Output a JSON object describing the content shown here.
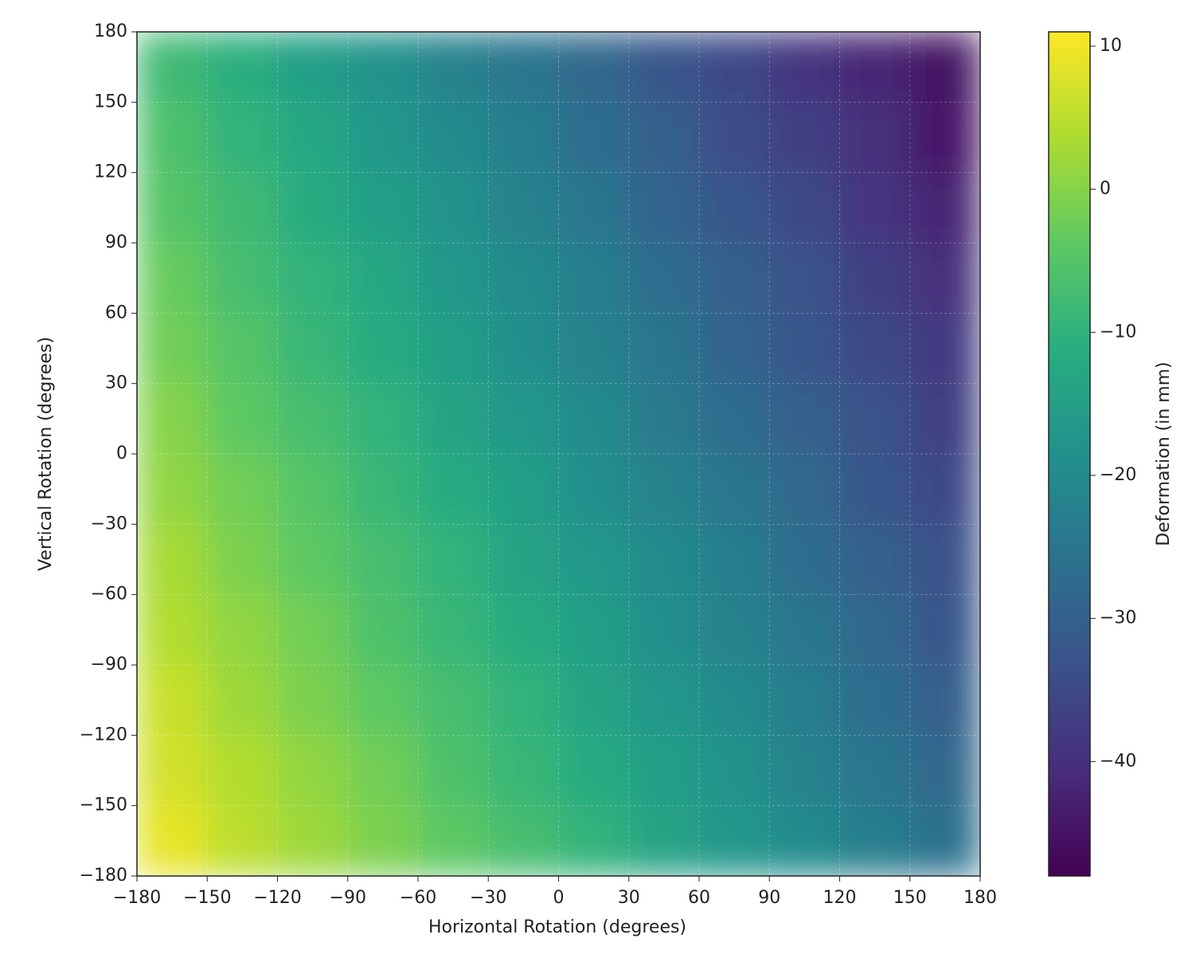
{
  "chart_data": {
    "type": "heatmap",
    "xlabel": "Horizontal Rotation (degrees)",
    "ylabel": "Vertical Rotation (degrees)",
    "colorbar_label": "Deformation (in mm)",
    "colormap": "viridis",
    "grid": true,
    "x": [
      -165,
      -135,
      -105,
      -75,
      -45,
      -15,
      15,
      45,
      75,
      105,
      135,
      165
    ],
    "y": [
      -165,
      -135,
      -105,
      -75,
      -45,
      -15,
      15,
      45,
      75,
      105,
      135,
      165
    ],
    "z": [
      [
        9,
        5,
        2,
        -1,
        -4,
        -7,
        -10,
        -14,
        -17,
        -20,
        -23,
        -26
      ],
      [
        7,
        4,
        1,
        -2,
        -6,
        -9,
        -12,
        -15,
        -18,
        -22,
        -25,
        -28
      ],
      [
        6,
        2,
        -1,
        -4,
        -7,
        -10,
        -14,
        -17,
        -20,
        -23,
        -27,
        -30
      ],
      [
        4,
        1,
        -2,
        -6,
        -9,
        -12,
        -15,
        -19,
        -22,
        -25,
        -28,
        -32
      ],
      [
        3,
        -1,
        -4,
        -7,
        -10,
        -14,
        -17,
        -20,
        -23,
        -27,
        -30,
        -33
      ],
      [
        1,
        -2,
        -5,
        -9,
        -12,
        -15,
        -19,
        -22,
        -25,
        -28,
        -32,
        -35
      ],
      [
        0,
        -4,
        -7,
        -10,
        -14,
        -17,
        -20,
        -24,
        -27,
        -30,
        -33,
        -37
      ],
      [
        -2,
        -5,
        -9,
        -12,
        -15,
        -19,
        -22,
        -25,
        -29,
        -32,
        -35,
        -38
      ],
      [
        -3,
        -7,
        -10,
        -13,
        -17,
        -20,
        -23,
        -27,
        -30,
        -33,
        -37,
        -40
      ],
      [
        -5,
        -8,
        -12,
        -15,
        -18,
        -22,
        -25,
        -29,
        -32,
        -35,
        -39,
        -42
      ],
      [
        -6,
        -10,
        -13,
        -17,
        -20,
        -23,
        -27,
        -30,
        -34,
        -37,
        -40,
        -44
      ],
      [
        -8,
        -11,
        -15,
        -18,
        -22,
        -25,
        -28,
        -32,
        -35,
        -39,
        -42,
        -45
      ]
    ],
    "xlim": [
      -180,
      180
    ],
    "ylim": [
      -180,
      180
    ],
    "xticks": [
      {
        "value": -180,
        "label": "−180"
      },
      {
        "value": -150,
        "label": "−150"
      },
      {
        "value": -120,
        "label": "−120"
      },
      {
        "value": -90,
        "label": "−90"
      },
      {
        "value": -60,
        "label": "−60"
      },
      {
        "value": -30,
        "label": "−30"
      },
      0,
      30,
      60,
      90,
      120,
      150,
      180
    ],
    "yticks": [
      {
        "value": -180,
        "label": "−180"
      },
      {
        "value": -150,
        "label": "−150"
      },
      {
        "value": -120,
        "label": "−120"
      },
      {
        "value": -90,
        "label": "−90"
      },
      {
        "value": -60,
        "label": "−60"
      },
      {
        "value": -30,
        "label": "−30"
      },
      0,
      30,
      60,
      90,
      120,
      150,
      180
    ],
    "zlim": [
      -48,
      11
    ],
    "zticks": [
      {
        "value": -40,
        "label": "−40"
      },
      {
        "value": -30,
        "label": "−30"
      },
      {
        "value": -20,
        "label": "−20"
      },
      {
        "value": -10,
        "label": "−10"
      },
      0,
      10
    ]
  }
}
